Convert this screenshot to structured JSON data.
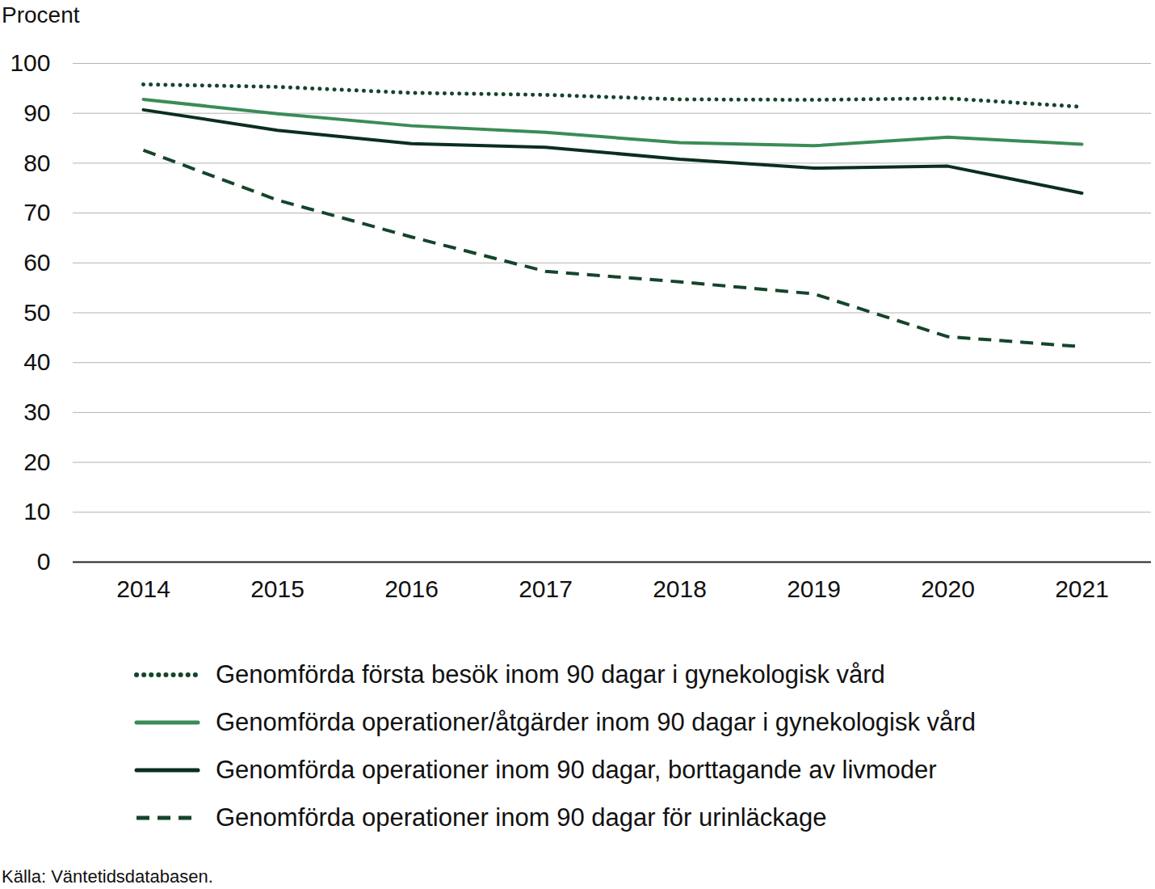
{
  "chart_data": {
    "type": "line",
    "y_label": "Procent",
    "caption": "Källa: Väntetidsdatabasen.",
    "categories": [
      "2014",
      "2015",
      "2016",
      "2017",
      "2018",
      "2019",
      "2020",
      "2021"
    ],
    "series": [
      {
        "name": "Genomförda första besök inom 90 dagar i gynekologisk vård",
        "color": "#14452b",
        "line_style": "dotted",
        "values": [
          95.8,
          95.3,
          94.1,
          93.7,
          92.8,
          92.7,
          93.0,
          91.3
        ]
      },
      {
        "name": "Genomförda operationer/åtgärder inom 90 dagar i gynekologisk vård",
        "color": "#3a8c56",
        "line_style": "solid",
        "values": [
          92.8,
          89.9,
          87.5,
          86.2,
          84.1,
          83.5,
          85.2,
          83.8
        ]
      },
      {
        "name": "Genomförda operationer inom 90 dagar, borttagande av livmoder",
        "color": "#0b2e1f",
        "line_style": "solid",
        "values": [
          90.7,
          86.6,
          83.9,
          83.2,
          80.8,
          79.0,
          79.4,
          74.0
        ]
      },
      {
        "name": "Genomförda operationer inom 90 dagar för urinläckage",
        "color": "#14452b",
        "line_style": "dashed",
        "values": [
          82.6,
          72.6,
          65.2,
          58.3,
          56.2,
          53.8,
          45.2,
          43.2
        ]
      }
    ],
    "ylim": [
      0,
      100
    ],
    "yticks": [
      0,
      10,
      20,
      30,
      40,
      50,
      60,
      70,
      80,
      90,
      100
    ],
    "grid": true,
    "legend": "bottom"
  }
}
